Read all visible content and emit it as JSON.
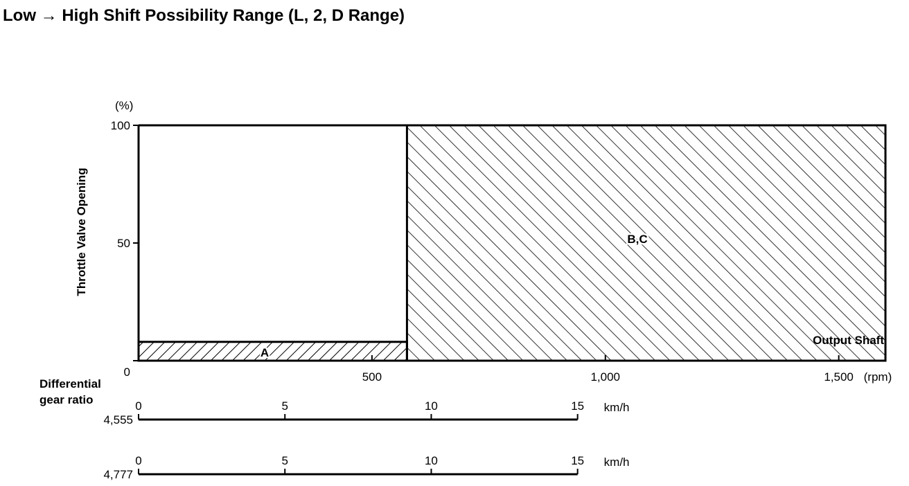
{
  "chart_data": {
    "type": "area",
    "title": "Low → High Shift Possibility Range (L, 2, D Range)",
    "ylabel": "Throttle Valve Opening",
    "yunit": "(%)",
    "ylim": [
      0,
      100
    ],
    "yticks": [
      {
        "value": 0,
        "label": "0"
      },
      {
        "value": 50,
        "label": "50"
      },
      {
        "value": 100,
        "label": "100"
      }
    ],
    "xlim": [
      0,
      1600
    ],
    "xlabel": "Output Shaft",
    "xunit": "(rpm)",
    "xticks": [
      {
        "value": 500,
        "label": "500"
      },
      {
        "value": 1000,
        "label": "1,000"
      },
      {
        "value": 1500,
        "label": "1,500"
      }
    ],
    "regions": [
      {
        "label": "A",
        "x": [
          0,
          575
        ],
        "y": [
          0,
          8
        ],
        "hatch": "forward"
      },
      {
        "label": "B,C",
        "x": [
          575,
          1600
        ],
        "y": [
          0,
          100
        ],
        "hatch": "backward"
      }
    ],
    "secondary_axes_title": [
      "Differential",
      "gear ratio"
    ],
    "secondary_axes": [
      {
        "ratio_label": "4,555",
        "unit": "km/h",
        "rpm_per_kmh": 62.7,
        "ticks": [
          {
            "value": 0,
            "label": "0"
          },
          {
            "value": 5,
            "label": "5"
          },
          {
            "value": 10,
            "label": "10"
          },
          {
            "value": 15,
            "label": "15"
          }
        ]
      },
      {
        "ratio_label": "4,777",
        "unit": "km/h",
        "rpm_per_kmh": 62.7,
        "ticks": [
          {
            "value": 0,
            "label": "0"
          },
          {
            "value": 5,
            "label": "5"
          },
          {
            "value": 10,
            "label": "10"
          },
          {
            "value": 15,
            "label": "15"
          }
        ]
      }
    ]
  }
}
